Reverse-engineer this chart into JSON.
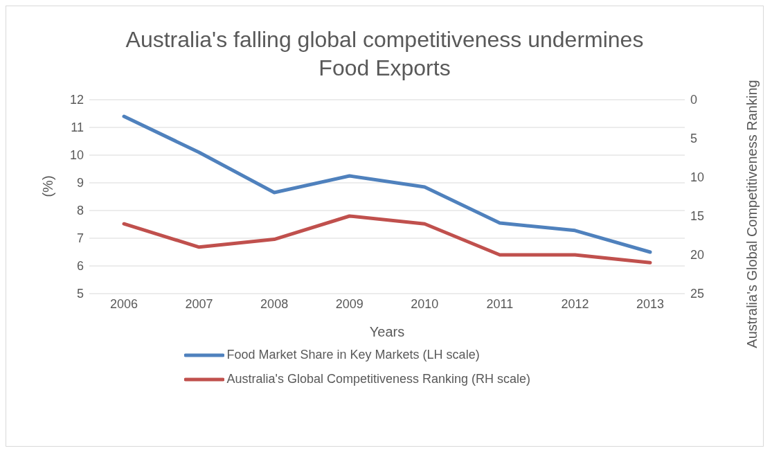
{
  "chart_data": {
    "type": "line",
    "title": "Australia's falling global competitiveness undermines Food Exports",
    "xlabel": "Years",
    "ylabel": "(%)",
    "y2label": "Australia's Global Competitiveness Ranking",
    "categories": [
      "2006",
      "2007",
      "2008",
      "2009",
      "2010",
      "2011",
      "2012",
      "2013"
    ],
    "series": [
      {
        "name": "Food Market Share in Key Markets (LH scale)",
        "color": "#4f81bd",
        "values": [
          11.4,
          10.1,
          8.65,
          9.25,
          8.85,
          7.55,
          7.28,
          6.5
        ]
      },
      {
        "name": "Australia's Global Competitiveness Ranking (RH scale)",
        "color": "#c0504d",
        "axis": "y2",
        "values": [
          16,
          19,
          18,
          15,
          16,
          20,
          20,
          21
        ]
      }
    ],
    "ylim": [
      5,
      12
    ],
    "yticks": [
      5,
      6,
      7,
      8,
      9,
      10,
      11,
      12
    ],
    "y2lim": [
      25,
      0
    ],
    "y2ticks": [
      0,
      5,
      10,
      15,
      20,
      25
    ],
    "grid": "y",
    "legend": "bottom",
    "marker": "none",
    "line_style": "solid"
  }
}
